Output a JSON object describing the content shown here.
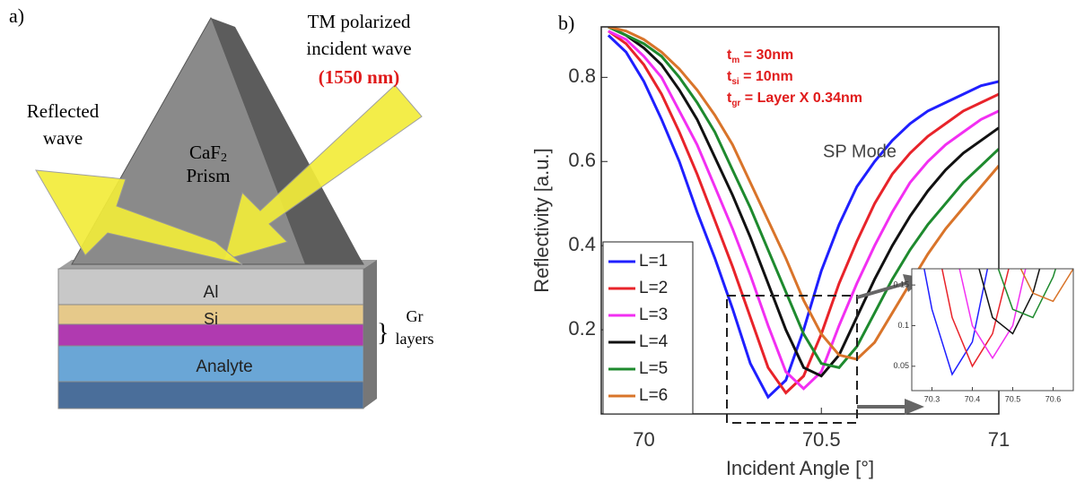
{
  "panel_a": {
    "label": "a)",
    "incident": [
      "TM polarized",
      "incident wave"
    ],
    "wavelength": "(1550 nm)",
    "reflected": [
      "Reflected",
      "wave"
    ],
    "prism": {
      "base": "CaF",
      "sub": "2",
      "line2": "Prism"
    },
    "layers": {
      "al": "Al",
      "si": "Si",
      "gr": [
        "Gr",
        "layers"
      ],
      "analyte": "Analyte"
    }
  },
  "chart_data": {
    "type": "line",
    "panel_label": "b)",
    "x_label": "Incident Angle [°]",
    "y_label": "Reflectivity [a.u.]",
    "annotations": [
      {
        "base": "t",
        "sub": "m",
        "rest": " = 30nm"
      },
      {
        "base": "t",
        "sub": "si",
        "rest": " = 10nm"
      },
      {
        "base": "t",
        "sub": "gr",
        "rest": " = Layer X 0.34nm"
      }
    ],
    "mode_label": "SP Mode",
    "x": [
      69.9,
      69.95,
      70.0,
      70.05,
      70.1,
      70.15,
      70.2,
      70.25,
      70.3,
      70.35,
      70.4,
      70.45,
      70.5,
      70.55,
      70.6,
      70.65,
      70.7,
      70.75,
      70.8,
      70.85,
      70.9,
      70.95,
      71.0
    ],
    "series": [
      {
        "name": "L=1",
        "color": "#1f1fff",
        "values": [
          0.9,
          0.86,
          0.79,
          0.7,
          0.6,
          0.48,
          0.37,
          0.25,
          0.12,
          0.04,
          0.08,
          0.2,
          0.34,
          0.45,
          0.54,
          0.6,
          0.65,
          0.69,
          0.72,
          0.74,
          0.76,
          0.78,
          0.79
        ]
      },
      {
        "name": "L=2",
        "color": "#e8232a",
        "values": [
          0.91,
          0.88,
          0.83,
          0.76,
          0.67,
          0.57,
          0.46,
          0.35,
          0.23,
          0.11,
          0.05,
          0.09,
          0.19,
          0.31,
          0.41,
          0.5,
          0.57,
          0.62,
          0.66,
          0.69,
          0.72,
          0.74,
          0.76
        ]
      },
      {
        "name": "L=3",
        "color": "#f22ff2",
        "values": [
          0.91,
          0.89,
          0.85,
          0.8,
          0.72,
          0.64,
          0.54,
          0.44,
          0.33,
          0.21,
          0.1,
          0.06,
          0.1,
          0.21,
          0.31,
          0.4,
          0.48,
          0.55,
          0.6,
          0.64,
          0.67,
          0.7,
          0.72
        ]
      },
      {
        "name": "L=4",
        "color": "#111111",
        "values": [
          0.92,
          0.9,
          0.87,
          0.83,
          0.77,
          0.7,
          0.61,
          0.52,
          0.42,
          0.31,
          0.2,
          0.11,
          0.09,
          0.14,
          0.23,
          0.32,
          0.4,
          0.47,
          0.53,
          0.58,
          0.62,
          0.65,
          0.68
        ]
      },
      {
        "name": "L=5",
        "color": "#1e8a2e",
        "values": [
          0.92,
          0.9,
          0.88,
          0.85,
          0.8,
          0.74,
          0.67,
          0.58,
          0.49,
          0.39,
          0.29,
          0.19,
          0.12,
          0.11,
          0.16,
          0.24,
          0.32,
          0.39,
          0.45,
          0.5,
          0.55,
          0.59,
          0.63
        ]
      },
      {
        "name": "L=6",
        "color": "#d9742a",
        "values": [
          0.92,
          0.91,
          0.89,
          0.86,
          0.82,
          0.77,
          0.71,
          0.64,
          0.55,
          0.46,
          0.37,
          0.27,
          0.19,
          0.14,
          0.13,
          0.17,
          0.24,
          0.31,
          0.38,
          0.44,
          0.49,
          0.54,
          0.59
        ]
      }
    ],
    "xlim": [
      69.88,
      71.0
    ],
    "ylim": [
      0,
      0.92
    ],
    "xticks": [
      70,
      70.5,
      71
    ],
    "yticks": [
      0.2,
      0.4,
      0.6,
      0.8
    ],
    "inset": {
      "xlim": [
        70.25,
        70.65
      ],
      "ylim": [
        0.02,
        0.17
      ],
      "xticks": [
        70.3,
        70.4,
        70.5,
        70.6
      ],
      "yticks": [
        0.05,
        0.1,
        0.15
      ]
    }
  }
}
